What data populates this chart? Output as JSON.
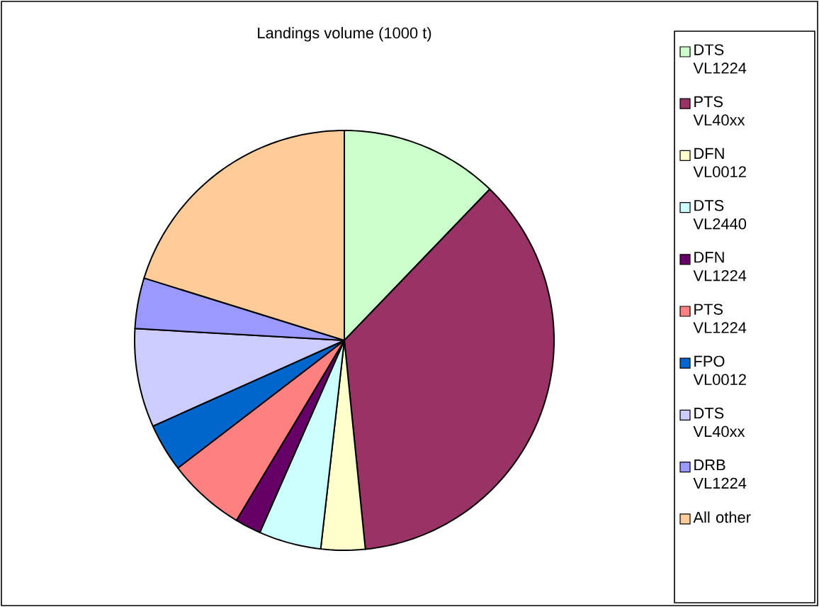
{
  "chart_data": {
    "type": "pie",
    "title": "Landings volume (1000 t)",
    "categories": [
      "DTS VL1224",
      "PTS VL40xx",
      "DFN VL0012",
      "DTS VL2440",
      "DFN VL1224",
      "PTS VL1224",
      "FPO VL0012",
      "DTS VL40xx",
      "DRB VL1224",
      "All other"
    ],
    "values": [
      12.2,
      36.2,
      3.4,
      4.8,
      2.0,
      6.0,
      3.7,
      7.6,
      3.9,
      20.2
    ],
    "colors": [
      "#ccffcc",
      "#993366",
      "#ffffcc",
      "#ccffff",
      "#660066",
      "#ff8080",
      "#0066cc",
      "#ccccff",
      "#9999ff",
      "#ffcc99"
    ],
    "legend": "right"
  }
}
